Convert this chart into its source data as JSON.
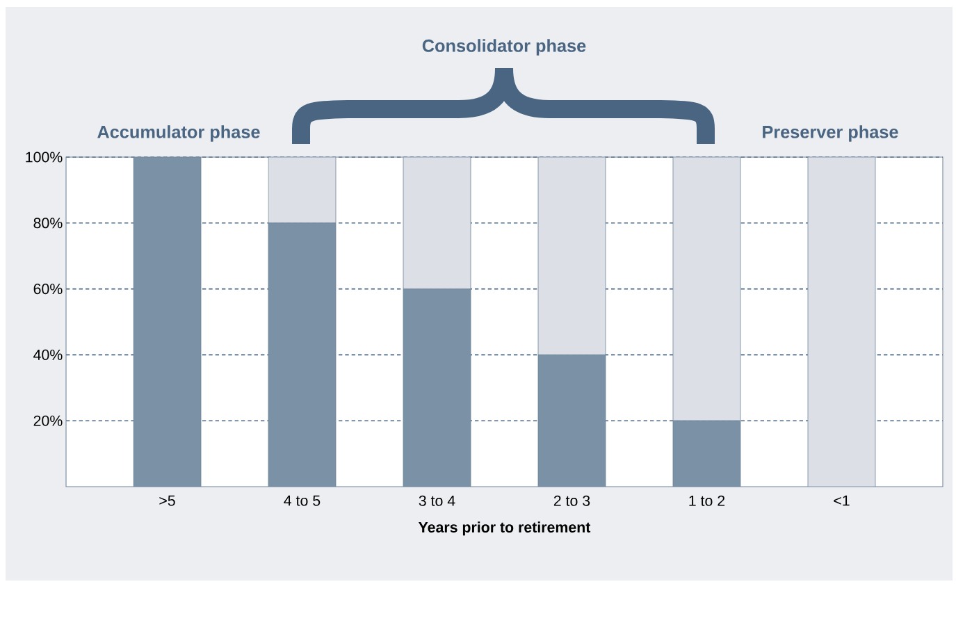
{
  "chart_data": {
    "type": "bar",
    "stacked": true,
    "xlabel": "Years prior to retirement",
    "categories": [
      ">5",
      "4 to 5",
      "3 to 4",
      "2 to 3",
      "1 to 2",
      "<1"
    ],
    "series": [
      {
        "color": "#7b91a6",
        "values": [
          100,
          80,
          60,
          40,
          20,
          0
        ]
      },
      {
        "color": "#dce0e6",
        "values": [
          0,
          20,
          40,
          60,
          80,
          100
        ]
      }
    ],
    "ylim": [
      0,
      100
    ],
    "yticks": [
      {
        "value": 20,
        "label": "20%"
      },
      {
        "value": 40,
        "label": "40%"
      },
      {
        "value": 60,
        "label": "60%"
      },
      {
        "value": 80,
        "label": "80%"
      },
      {
        "value": 100,
        "label": "100%"
      }
    ],
    "grid": "y",
    "annotations": [
      "Accumulator phase",
      "Consolidator phase",
      "Preserver phase"
    ]
  }
}
